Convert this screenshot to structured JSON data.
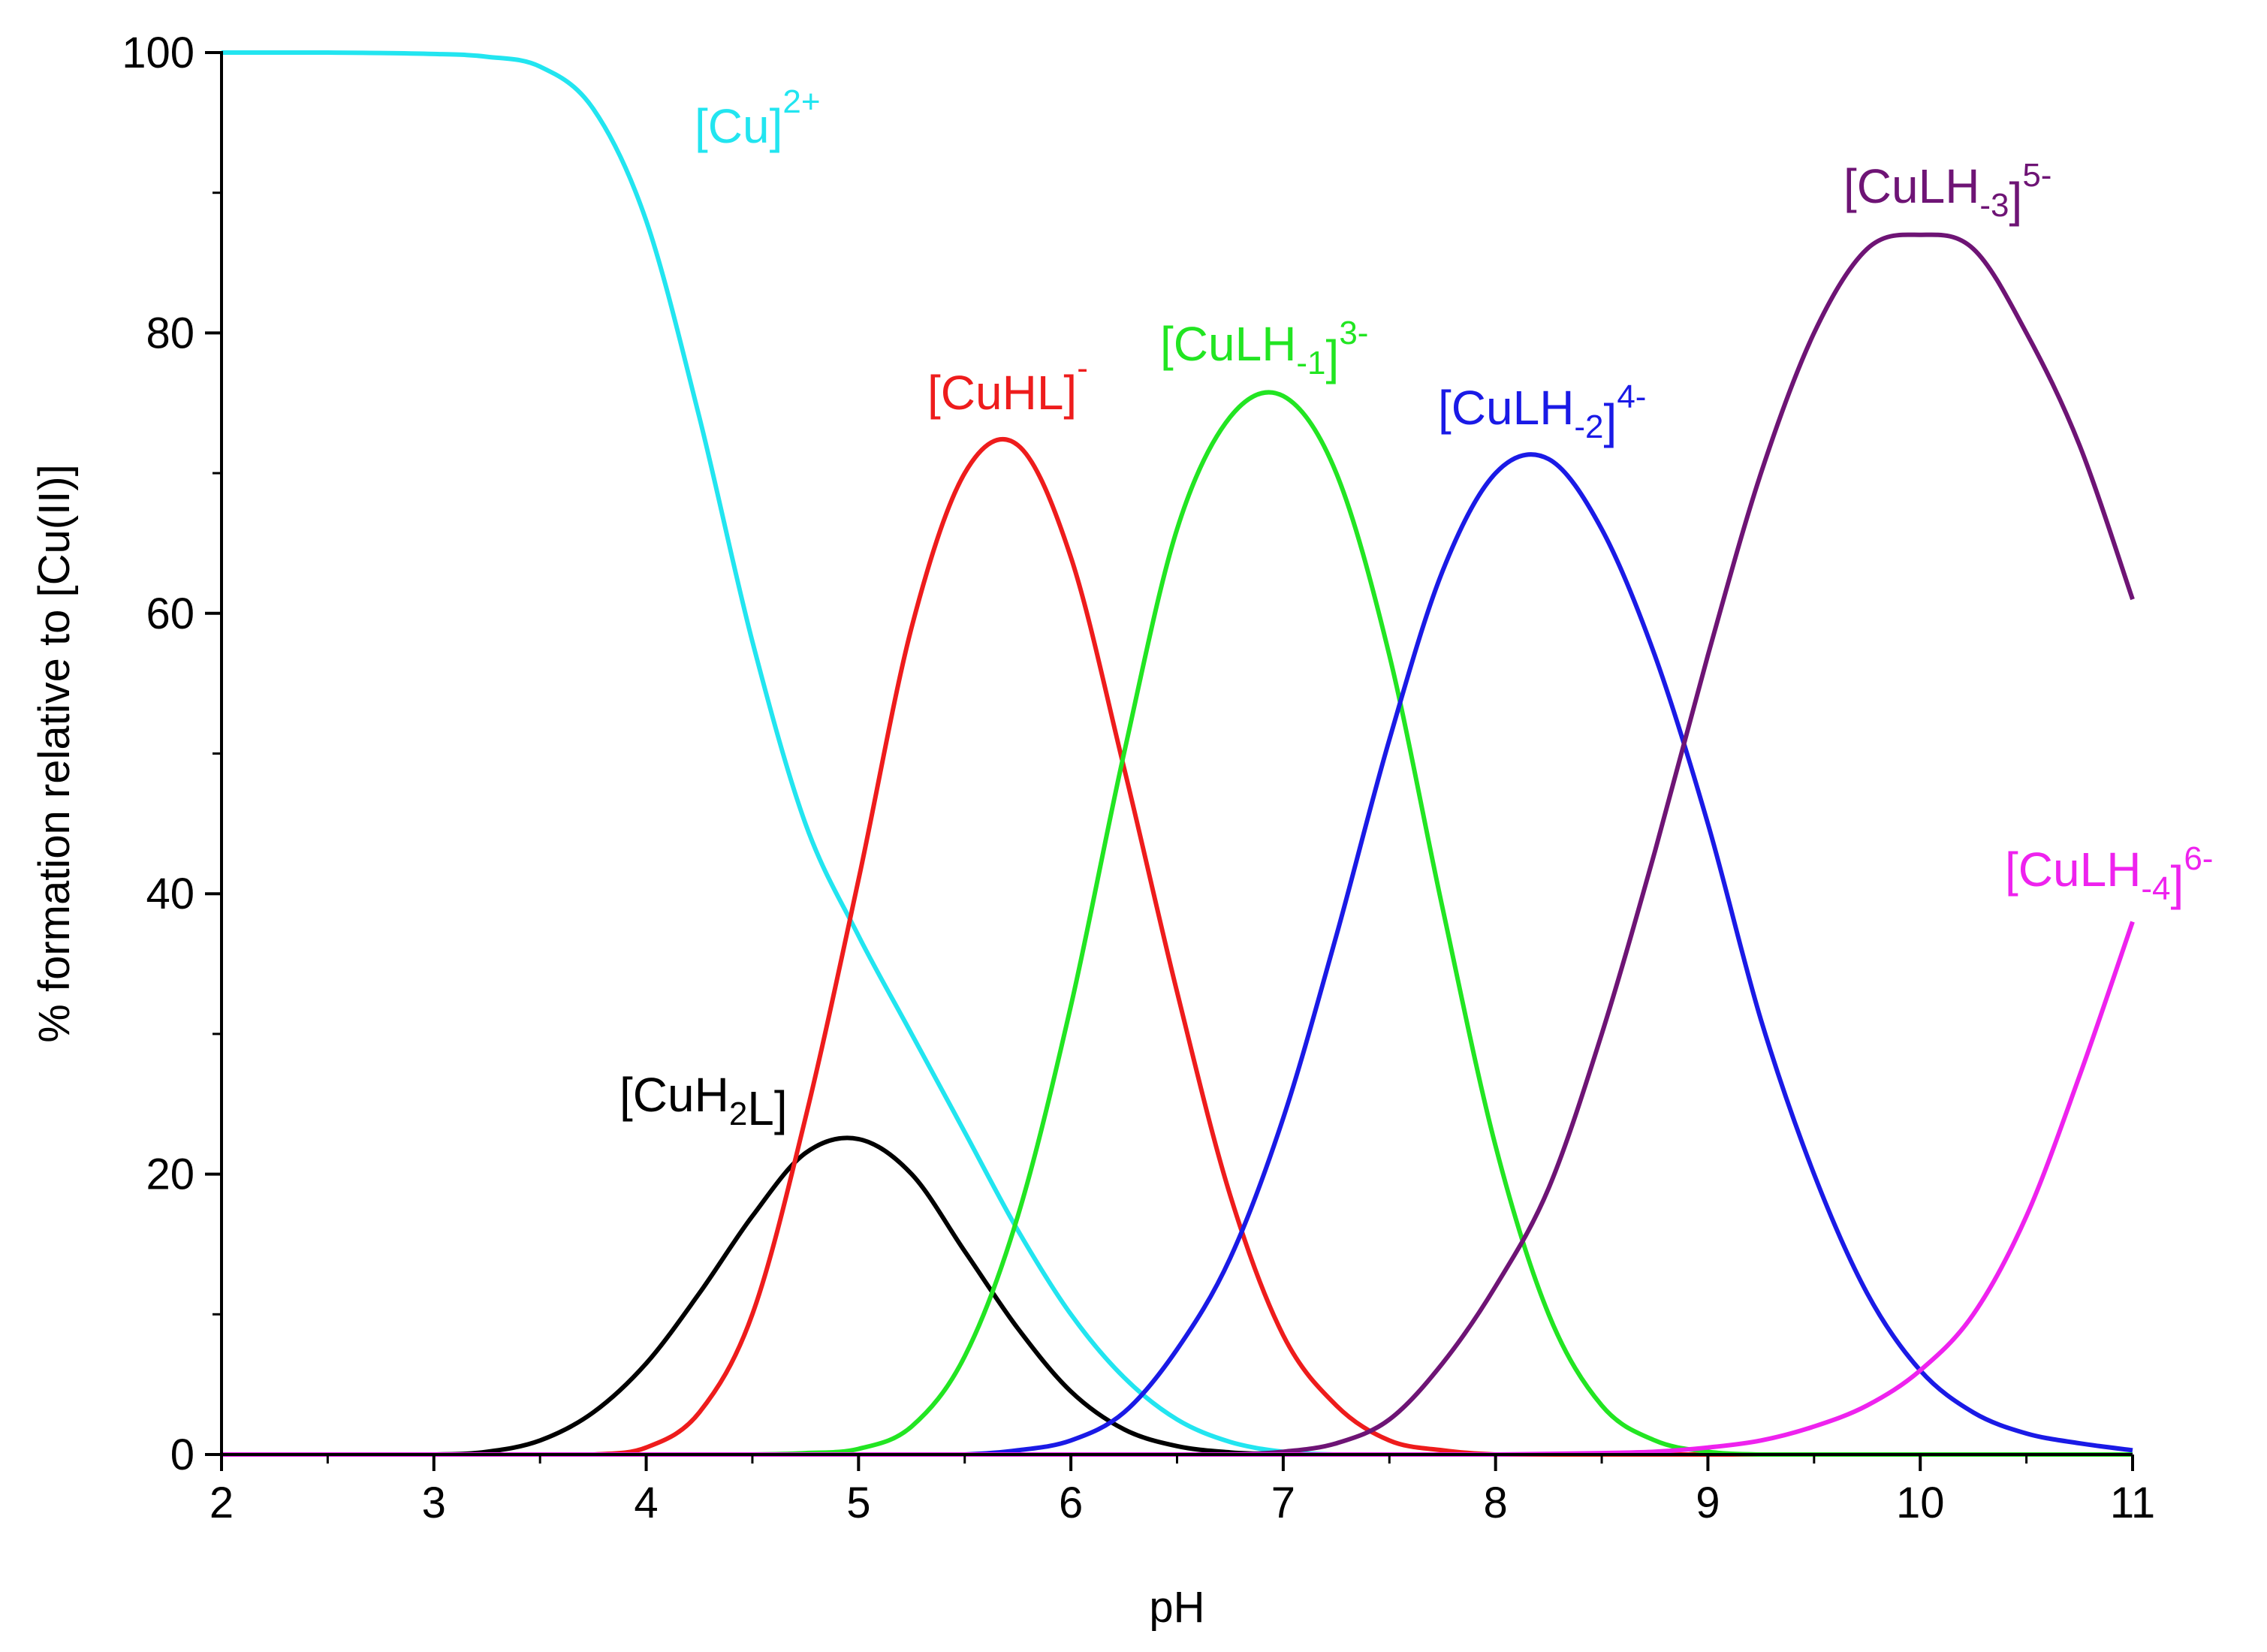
{
  "chart_data": {
    "type": "line",
    "title": "",
    "xlabel": "pH",
    "ylabel": "% formation relative to [Cu(II)]",
    "xlim": [
      2,
      11
    ],
    "ylim": [
      0,
      100
    ],
    "x_ticks": [
      "2",
      "3",
      "4",
      "5",
      "6",
      "7",
      "8",
      "9",
      "10",
      "11"
    ],
    "y_ticks": [
      "0",
      "20",
      "40",
      "60",
      "80",
      "100"
    ],
    "grid": false,
    "x": [
      2.0,
      2.5,
      3.0,
      3.25,
      3.5,
      3.75,
      4.0,
      4.25,
      4.5,
      4.75,
      5.0,
      5.25,
      5.5,
      5.75,
      6.0,
      6.25,
      6.5,
      6.75,
      7.0,
      7.25,
      7.5,
      7.75,
      8.0,
      8.25,
      8.5,
      8.75,
      9.0,
      9.25,
      9.5,
      9.75,
      10.0,
      10.25,
      10.5,
      10.75,
      11.0
    ],
    "series": [
      {
        "name": "[Cu]2+",
        "label_parts": [
          {
            "t": "[Cu]",
            "s": ""
          },
          {
            "t": "2+",
            "s": "sup"
          }
        ],
        "color": "#22e5f0",
        "values": [
          100,
          100,
          99.9,
          99.7,
          99,
          96,
          88,
          74,
          58,
          45,
          37,
          30,
          23,
          16,
          10,
          5.5,
          2.5,
          0.9,
          0.2,
          0,
          0,
          0,
          0,
          0,
          0,
          0,
          0,
          0,
          0,
          0,
          0,
          0,
          0,
          0,
          0
        ]
      },
      {
        "name": "[CuH2L]",
        "label_parts": [
          {
            "t": "[CuH",
            "s": ""
          },
          {
            "t": "2",
            "s": "sub"
          },
          {
            "t": "L]",
            "s": ""
          }
        ],
        "color": "#000000",
        "values": [
          0,
          0,
          0,
          0.2,
          1,
          3,
          6.5,
          11.5,
          17,
          21.5,
          22.5,
          20,
          14.5,
          9,
          4.5,
          1.8,
          0.6,
          0.15,
          0,
          0,
          0,
          0,
          0,
          0,
          0,
          0,
          0,
          0,
          0,
          0,
          0,
          0,
          0,
          0,
          0
        ]
      },
      {
        "name": "[CuHL]-",
        "label_parts": [
          {
            "t": "[CuHL]",
            "s": ""
          },
          {
            "t": "-",
            "s": "sup"
          }
        ],
        "color": "#ee1c1c",
        "values": [
          0,
          0,
          0,
          0,
          0,
          0,
          0.5,
          3,
          10,
          24,
          41,
          59,
          70,
          72,
          64,
          49,
          33,
          18.5,
          8.5,
          3.5,
          1,
          0.3,
          0,
          0,
          0,
          0,
          0,
          0,
          0,
          0,
          0,
          0,
          0,
          0,
          0
        ]
      },
      {
        "name": "[CuLH-1]3-",
        "label_parts": [
          {
            "t": "[CuLH",
            "s": ""
          },
          {
            "t": "-1",
            "s": "sub"
          },
          {
            "t": "]",
            "s": ""
          },
          {
            "t": "3-",
            "s": "sup"
          }
        ],
        "color": "#22e522",
        "values": [
          0,
          0,
          0,
          0,
          0,
          0,
          0,
          0,
          0,
          0.1,
          0.4,
          2,
          7,
          17,
          32,
          50,
          66,
          74,
          75.5,
          70,
          57,
          39,
          22,
          10,
          3.5,
          1,
          0.2,
          0,
          0,
          0,
          0,
          0,
          0,
          0,
          0
        ]
      },
      {
        "name": "[CuLH-2]4-",
        "label_parts": [
          {
            "t": "[CuLH",
            "s": ""
          },
          {
            "t": "-2",
            "s": "sub"
          },
          {
            "t": "]",
            "s": ""
          },
          {
            "t": "4-",
            "s": "sup"
          }
        ],
        "color": "#1a1ae6",
        "values": [
          0,
          0,
          0,
          0,
          0,
          0,
          0,
          0,
          0,
          0,
          0,
          0,
          0,
          0.3,
          1,
          3,
          7.5,
          14,
          24,
          37,
          51,
          63,
          70,
          71,
          66,
          57,
          45,
          31,
          20,
          11.5,
          6,
          3,
          1.5,
          0.8,
          0.3
        ]
      },
      {
        "name": "[CuLH-3]5-",
        "label_parts": [
          {
            "t": "[CuLH",
            "s": ""
          },
          {
            "t": "-3",
            "s": "sub"
          },
          {
            "t": "]",
            "s": ""
          },
          {
            "t": "5-",
            "s": "sup"
          }
        ],
        "color": "#6e1475",
        "values": [
          0,
          0,
          0,
          0,
          0,
          0,
          0,
          0,
          0,
          0,
          0,
          0,
          0,
          0,
          0,
          0,
          0,
          0,
          0.2,
          0.8,
          2.5,
          6.5,
          12,
          19,
          30,
          43,
          57,
          70,
          80,
          86,
          87,
          86,
          80,
          72,
          61
        ]
      },
      {
        "name": "[CuLH-4]6-",
        "label_parts": [
          {
            "t": "[CuLH",
            "s": ""
          },
          {
            "t": "-4",
            "s": "sub"
          },
          {
            "t": "]",
            "s": ""
          },
          {
            "t": "6-",
            "s": "sup"
          }
        ],
        "color": "#ee22ee",
        "values": [
          0,
          0,
          0,
          0,
          0,
          0,
          0,
          0,
          0,
          0,
          0,
          0,
          0,
          0,
          0,
          0,
          0,
          0,
          0,
          0,
          0,
          0,
          0,
          0.05,
          0.1,
          0.2,
          0.5,
          1,
          2,
          3.5,
          6,
          10,
          17,
          27,
          38
        ]
      }
    ]
  }
}
